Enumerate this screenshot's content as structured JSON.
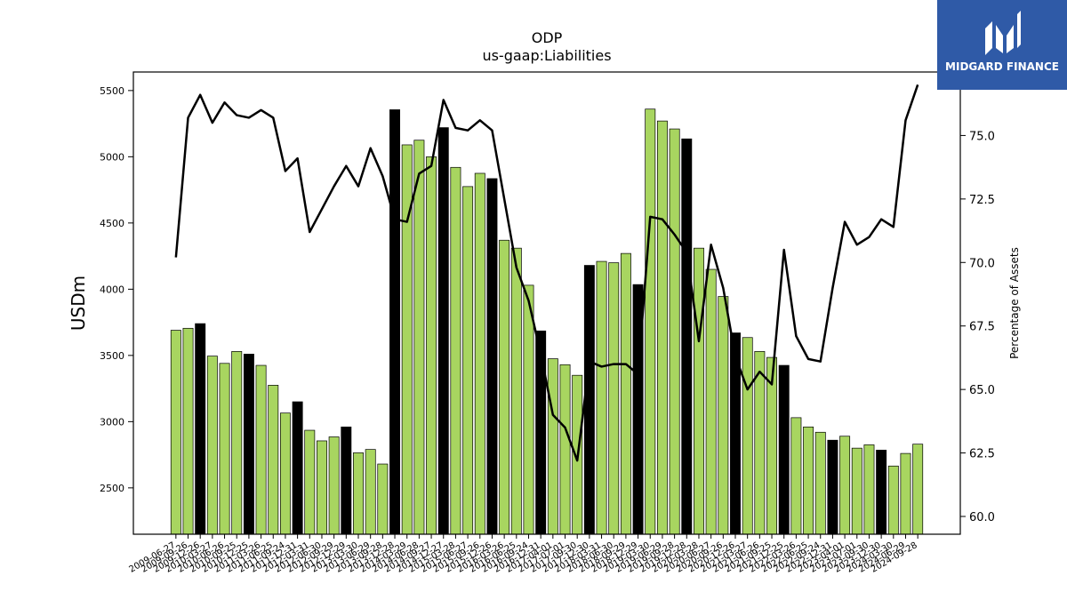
{
  "brand": {
    "name": "MIDGARD FINANCE",
    "bg_color": "#2f5aa7"
  },
  "chart_data": {
    "type": "bar",
    "title": "ODP",
    "subtitle": "us-gaap:Liabilities",
    "ylabel": "USDm",
    "y2label": "Percentage of Assets",
    "ylim": [
      2150,
      5640
    ],
    "y2lim": [
      59.3,
      77.5
    ],
    "yticks": [
      2500,
      3000,
      3500,
      4000,
      4500,
      5000,
      5500
    ],
    "y2ticks": [
      60.0,
      62.5,
      65.0,
      67.5,
      70.0,
      72.5,
      75.0
    ],
    "colors": {
      "bar": "#a8d560",
      "bar_fy": "#000000",
      "line": "#000000"
    },
    "x": [
      "2009-06-27",
      "2009-09-26",
      "2009-12-26",
      "2010-03-27",
      "2010-06-26",
      "2010-09-25",
      "2010-12-25",
      "2011-03-26",
      "2011-06-25",
      "2011-09-24",
      "2011-12-31",
      "2012-03-31",
      "2012-06-30",
      "2012-09-29",
      "2012-12-29",
      "2013-03-30",
      "2013-06-29",
      "2013-09-28",
      "2013-12-28",
      "2014-03-29",
      "2014-06-28",
      "2014-09-27",
      "2014-12-27",
      "2015-03-28",
      "2015-06-27",
      "2015-09-26",
      "2015-12-26",
      "2016-03-26",
      "2016-06-25",
      "2016-09-24",
      "2016-12-31",
      "2017-04-01",
      "2017-07-01",
      "2017-09-30",
      "2017-12-30",
      "2018-03-31",
      "2018-06-30",
      "2018-09-29",
      "2018-12-29",
      "2019-03-30",
      "2019-06-29",
      "2019-09-28",
      "2019-12-28",
      "2020-03-28",
      "2020-06-27",
      "2020-09-26",
      "2020-12-26",
      "2021-03-27",
      "2021-06-26",
      "2021-09-25",
      "2021-12-25",
      "2022-03-26",
      "2022-06-25",
      "2022-09-24",
      "2022-12-31",
      "2023-04-01",
      "2023-07-01",
      "2023-09-30",
      "2023-12-30",
      "2024-03-30",
      "2024-06-29",
      "2024-09-28"
    ],
    "fiscal_year_end": [
      false,
      false,
      true,
      false,
      false,
      false,
      true,
      false,
      false,
      false,
      true,
      false,
      false,
      false,
      true,
      false,
      false,
      false,
      true,
      false,
      false,
      false,
      true,
      false,
      false,
      false,
      true,
      false,
      false,
      false,
      true,
      false,
      false,
      false,
      true,
      false,
      false,
      false,
      true,
      false,
      false,
      false,
      true,
      false,
      false,
      false,
      true,
      false,
      false,
      false,
      true,
      false,
      false,
      false,
      true,
      false,
      false,
      false,
      true,
      false,
      false,
      false
    ],
    "series": [
      {
        "name": "Liabilities",
        "axis": "left",
        "kind": "bar",
        "values": [
          3690,
          3705,
          3740,
          3495,
          3440,
          3530,
          3510,
          3425,
          3275,
          3065,
          3150,
          2935,
          2855,
          2885,
          2960,
          2765,
          2790,
          2680,
          5355,
          5090,
          5125,
          5000,
          5220,
          4920,
          4775,
          4875,
          4835,
          4370,
          4310,
          4030,
          3685,
          3475,
          3430,
          3350,
          4180,
          4210,
          4200,
          4270,
          4035,
          5360,
          5270,
          5210,
          5135,
          4310,
          4150,
          3945,
          3670,
          3635,
          3530,
          3485,
          3425,
          3030,
          2960,
          2920,
          2860,
          2890,
          2800,
          2825,
          2785,
          2665,
          2760,
          2830
        ]
      },
      {
        "name": "Percentage of Assets",
        "axis": "right",
        "kind": "line",
        "values": [
          70.2,
          75.7,
          76.6,
          75.5,
          76.3,
          75.8,
          75.7,
          76.0,
          75.7,
          73.6,
          74.1,
          71.2,
          72.1,
          73.0,
          73.8,
          73.0,
          74.5,
          73.4,
          71.7,
          71.6,
          73.5,
          73.8,
          76.4,
          75.3,
          75.2,
          75.6,
          75.2,
          72.5,
          69.8,
          68.5,
          66.4,
          64.0,
          63.5,
          62.2,
          66.1,
          65.9,
          66.0,
          66.0,
          65.6,
          71.8,
          71.7,
          71.1,
          70.4,
          66.9,
          70.7,
          69.0,
          66.3,
          65.0,
          65.7,
          65.2,
          70.5,
          67.1,
          66.2,
          66.1,
          69.0,
          71.6,
          70.7,
          71.0,
          71.7,
          71.4,
          75.6,
          77.0
        ]
      }
    ],
    "grid": false,
    "legend": "none"
  }
}
